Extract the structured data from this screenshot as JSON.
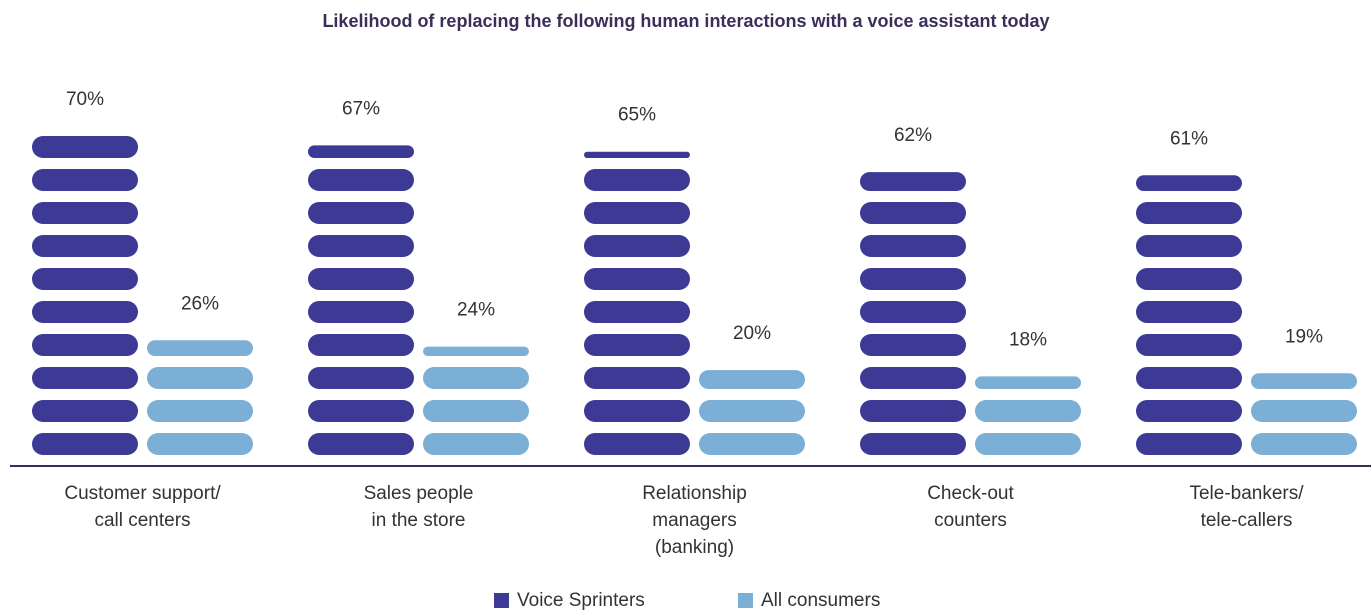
{
  "chart_data": {
    "type": "pictogram-bar",
    "title": "Likelihood of replacing the following human interactions with a voice assistant today",
    "categories": [
      [
        "Customer support/",
        "call centers"
      ],
      [
        "Sales people",
        "in the store"
      ],
      [
        "Relationship",
        "managers",
        "(banking)"
      ],
      [
        "Check-out",
        "counters"
      ],
      [
        "Tele-bankers/",
        "tele-callers"
      ]
    ],
    "series": [
      {
        "name": "Voice Sprinters",
        "color": "#3d3a96",
        "values": [
          70,
          67,
          65,
          62,
          61
        ],
        "value_labels": [
          "70%",
          "67%",
          "65%",
          "62%",
          "61%"
        ]
      },
      {
        "name": "All consumers",
        "color": "#7bafd6",
        "values": [
          26,
          24,
          20,
          18,
          19
        ],
        "value_labels": [
          "26%",
          "24%",
          "20%",
          "18%",
          "19%"
        ]
      }
    ],
    "legend": "bottom"
  }
}
